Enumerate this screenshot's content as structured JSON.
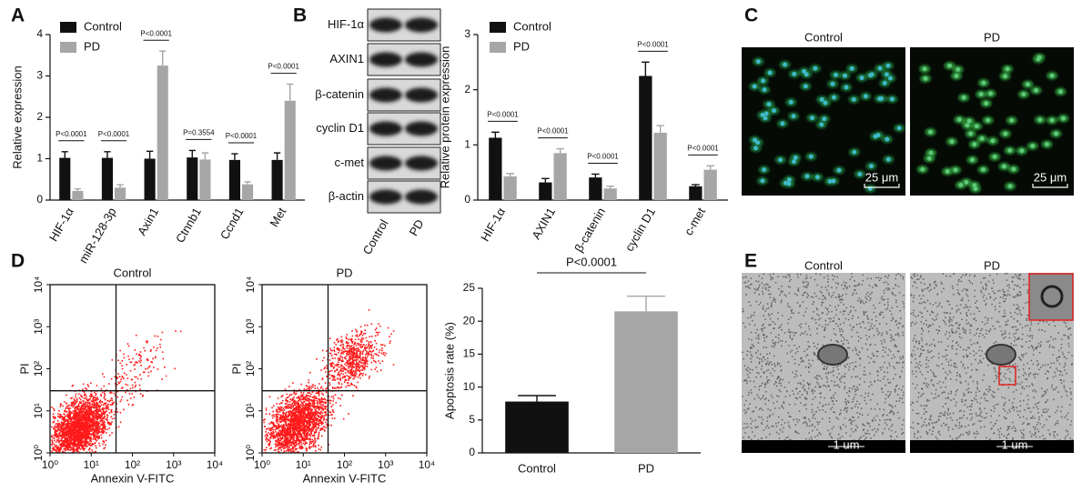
{
  "panel_labels": [
    "A",
    "B",
    "C",
    "D",
    "E"
  ],
  "chart_data": [
    {
      "type": "bar",
      "legend": "top-left",
      "y_label": "Relative expression",
      "categories": [
        "HIF-1α",
        "miR-128-3p",
        "Axin1",
        "Ctnnb1",
        "Ccnd1",
        "Met"
      ],
      "series": [
        {
          "name": "Control",
          "color": "#111111",
          "values": [
            1.02,
            1.02,
            1.0,
            1.03,
            0.97,
            0.97
          ],
          "errors": [
            0.15,
            0.15,
            0.18,
            0.17,
            0.15,
            0.17
          ]
        },
        {
          "name": "PD",
          "color": "#a6a6a6",
          "values": [
            0.22,
            0.3,
            3.25,
            0.98,
            0.38,
            2.4
          ],
          "errors": [
            0.05,
            0.07,
            0.35,
            0.16,
            0.06,
            0.4
          ]
        }
      ],
      "annotations": [
        "P<0.0001",
        "P<0.0001",
        "P<0.0001",
        "P=0.3554",
        "P<0.0001",
        "P<0.0001"
      ],
      "ylim": [
        0,
        4
      ],
      "yticks": [
        0,
        1,
        2,
        3,
        4
      ]
    },
    {
      "type": "bar",
      "legend": "top-left",
      "y_label": "Relative protein expression",
      "categories": [
        "HIF-1α",
        "AXIN1",
        "β-catenin",
        "cyclin D1",
        "c-met"
      ],
      "series": [
        {
          "name": "Control",
          "color": "#111111",
          "values": [
            1.13,
            0.32,
            0.41,
            2.25,
            0.25
          ],
          "errors": [
            0.1,
            0.07,
            0.06,
            0.25,
            0.03
          ]
        },
        {
          "name": "PD",
          "color": "#a6a6a6",
          "values": [
            0.43,
            0.85,
            0.21,
            1.22,
            0.55
          ],
          "errors": [
            0.05,
            0.08,
            0.04,
            0.13,
            0.07
          ]
        }
      ],
      "annotations": [
        "P<0.0001",
        "P<0.0001",
        "P<0.0001",
        "P<0.0001",
        "P<0.0001"
      ],
      "ylim": [
        0,
        3
      ],
      "yticks": [
        0,
        1,
        2,
        3
      ]
    },
    {
      "type": "scatter",
      "title": "Control",
      "x_label": "Annexin V-FITC",
      "y_label": "PI",
      "log_scale": true,
      "color": "#ff1a1a",
      "xlim": [
        1,
        10000
      ],
      "ylim": [
        1,
        10000
      ],
      "xticks": [
        {
          "value": 1,
          "label": "10⁰"
        },
        {
          "value": 10,
          "label": "10¹"
        },
        {
          "value": 100,
          "label": "10²"
        },
        {
          "value": 1000,
          "label": "10³"
        },
        {
          "value": 10000,
          "label": "10⁴"
        }
      ],
      "yticks": [
        {
          "value": 1,
          "label": "10⁰"
        },
        {
          "value": 10,
          "label": "10¹"
        },
        {
          "value": 100,
          "label": "10²"
        },
        {
          "value": 1000,
          "label": "10³"
        },
        {
          "value": 10000,
          "label": "10⁴"
        }
      ],
      "gate_x": 40,
      "gate_y": 30
    },
    {
      "type": "scatter",
      "title": "PD",
      "x_label": "Annexin V-FITC",
      "y_label": "PI",
      "log_scale": true,
      "color": "#ff1a1a",
      "xlim": [
        1,
        10000
      ],
      "ylim": [
        1,
        10000
      ],
      "xticks": [
        {
          "value": 1,
          "label": "10⁰"
        },
        {
          "value": 10,
          "label": "10¹"
        },
        {
          "value": 100,
          "label": "10²"
        },
        {
          "value": 1000,
          "label": "10³"
        },
        {
          "value": 10000,
          "label": "10⁴"
        }
      ],
      "yticks": [
        {
          "value": 1,
          "label": "10⁰"
        },
        {
          "value": 10,
          "label": "10¹"
        },
        {
          "value": 100,
          "label": "10²"
        },
        {
          "value": 1000,
          "label": "10³"
        },
        {
          "value": 10000,
          "label": "10⁴"
        }
      ],
      "gate_x": 40,
      "gate_y": 30
    },
    {
      "type": "bar",
      "y_label": "Apoptosis rate (%)",
      "categories": [
        "Control",
        "PD"
      ],
      "values": [
        7.8,
        21.5
      ],
      "errors": [
        0.9,
        2.3
      ],
      "colors": [
        "#111111",
        "#a6a6a6"
      ],
      "annotations": [
        "P<0.0001"
      ],
      "ylim": [
        0,
        25
      ],
      "yticks": [
        0,
        5,
        10,
        15,
        20,
        25
      ]
    }
  ],
  "western_blot": {
    "proteins": [
      "HIF-1α",
      "AXIN1",
      "β-catenin",
      "cyclin D1",
      "c-met",
      "β-actin"
    ],
    "lanes": [
      "Control",
      "PD"
    ]
  },
  "micrograph_c": {
    "labels": [
      "Control",
      "PD"
    ],
    "scale_bar": "25 μm"
  },
  "micrograph_e": {
    "labels": [
      "Control",
      "PD"
    ],
    "scale_bar": "1 um"
  }
}
